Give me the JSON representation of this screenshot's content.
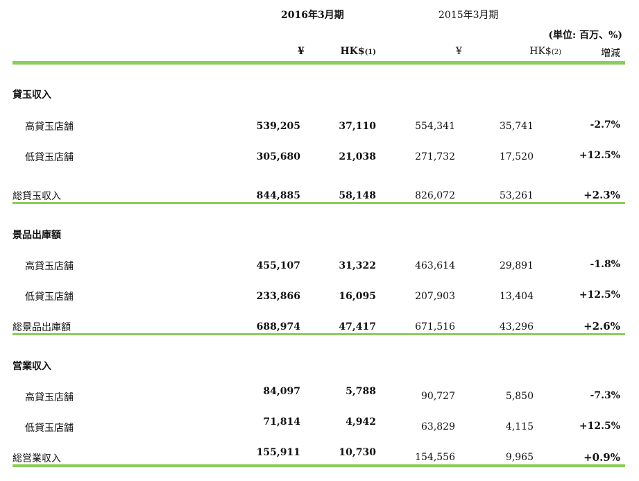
{
  "header": {
    "period_2016": "2016年3月期",
    "period_2015": "2015年3月期",
    "unit": "(単位:  百万、%)",
    "col_yen_2016": "¥",
    "col_hkd_2016": "HK$",
    "col_hkd_2016_note": "(1)",
    "col_yen_2015": "¥",
    "col_hkd_2015": "HK$",
    "col_hkd_2015_note": "(2)",
    "col_change": "増減"
  },
  "sections": [
    {
      "title": "貸玉収入",
      "rows": [
        {
          "label": "高貸玉店舗",
          "yen_2016": "539,205",
          "hkd_2016": "37,110",
          "yen_2015": "554,341",
          "hkd_2015": "35,741",
          "change": "-2.7%"
        },
        {
          "label": "低貸玉店舗",
          "yen_2016": "305,680",
          "hkd_2016": "21,038",
          "yen_2015": "271,732",
          "hkd_2015": "17,520",
          "change": "+12.5%"
        }
      ],
      "total": {
        "label": "総貸玉収入",
        "yen_2016": "844,885",
        "hkd_2016": "58,148",
        "yen_2015": "826,072",
        "hkd_2015": "53,261",
        "change": "+2.3%"
      }
    },
    {
      "title": "景品出庫額",
      "rows": [
        {
          "label": "高貸玉店舗",
          "yen_2016": "455,107",
          "hkd_2016": "31,322",
          "yen_2015": "463,614",
          "hkd_2015": "29,891",
          "change": "-1.8%"
        },
        {
          "label": "低貸玉店舗",
          "yen_2016": "233,866",
          "hkd_2016": "16,095",
          "yen_2015": "207,903",
          "hkd_2015": "13,404",
          "change": "+12.5%"
        }
      ],
      "total": {
        "label": "総景品出庫額",
        "yen_2016": "688,974",
        "hkd_2016": "47,417",
        "yen_2015": "671,516",
        "hkd_2015": "43,296",
        "change": "+2.6%"
      }
    },
    {
      "title": "営業収入",
      "rows": [
        {
          "label": "高貸玉店舗",
          "yen_2016": "84,097",
          "hkd_2016": "5,788",
          "yen_2015": "90,727",
          "hkd_2015": "5,850",
          "change": "-7.3%"
        },
        {
          "label": "低貸玉店舗",
          "yen_2016": "71,814",
          "hkd_2016": "4,942",
          "yen_2015": "63,829",
          "hkd_2015": "4,115",
          "change": "+12.5%"
        }
      ],
      "total": {
        "label": "総営業収入",
        "yen_2016": "155,911",
        "hkd_2016": "10,730",
        "yen_2015": "154,556",
        "hkd_2015": "9,965",
        "change": "+0.9%"
      }
    }
  ],
  "colors": {
    "rule_green": "#8ccc5a",
    "text": "#111111"
  }
}
